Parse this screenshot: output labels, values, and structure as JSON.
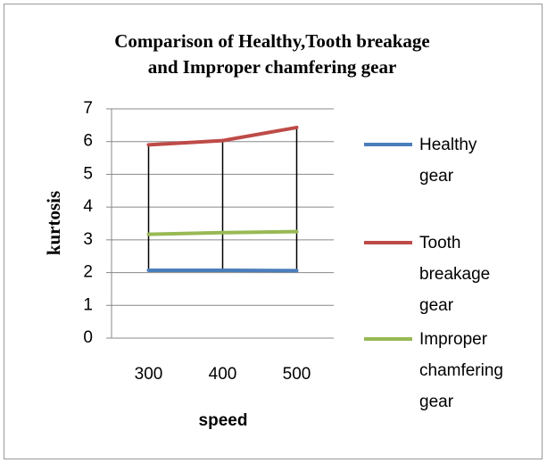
{
  "chart_data": {
    "type": "line",
    "title": [
      "Comparison of Healthy,Tooth breakage",
      "and  Improper chamfering gear"
    ],
    "x_label": "speed",
    "y_label": "kurtosis",
    "categories": [
      "300",
      "400",
      "500"
    ],
    "series": [
      {
        "name": "Healthy gear",
        "color": "#4a7ebb",
        "values": [
          2.07,
          2.07,
          2.06
        ]
      },
      {
        "name": "Tooth breakage gear",
        "color": "#be4b48",
        "values": [
          5.9,
          6.03,
          6.43
        ]
      },
      {
        "name": "Improper chamfering gear",
        "color": "#98b954",
        "values": [
          3.17,
          3.22,
          3.25
        ]
      }
    ],
    "ylim": [
      0,
      7
    ],
    "yticks": [
      0,
      1,
      2,
      3,
      4,
      5,
      6,
      7
    ],
    "grid": true,
    "high_low_lines": true,
    "legend": "right"
  }
}
